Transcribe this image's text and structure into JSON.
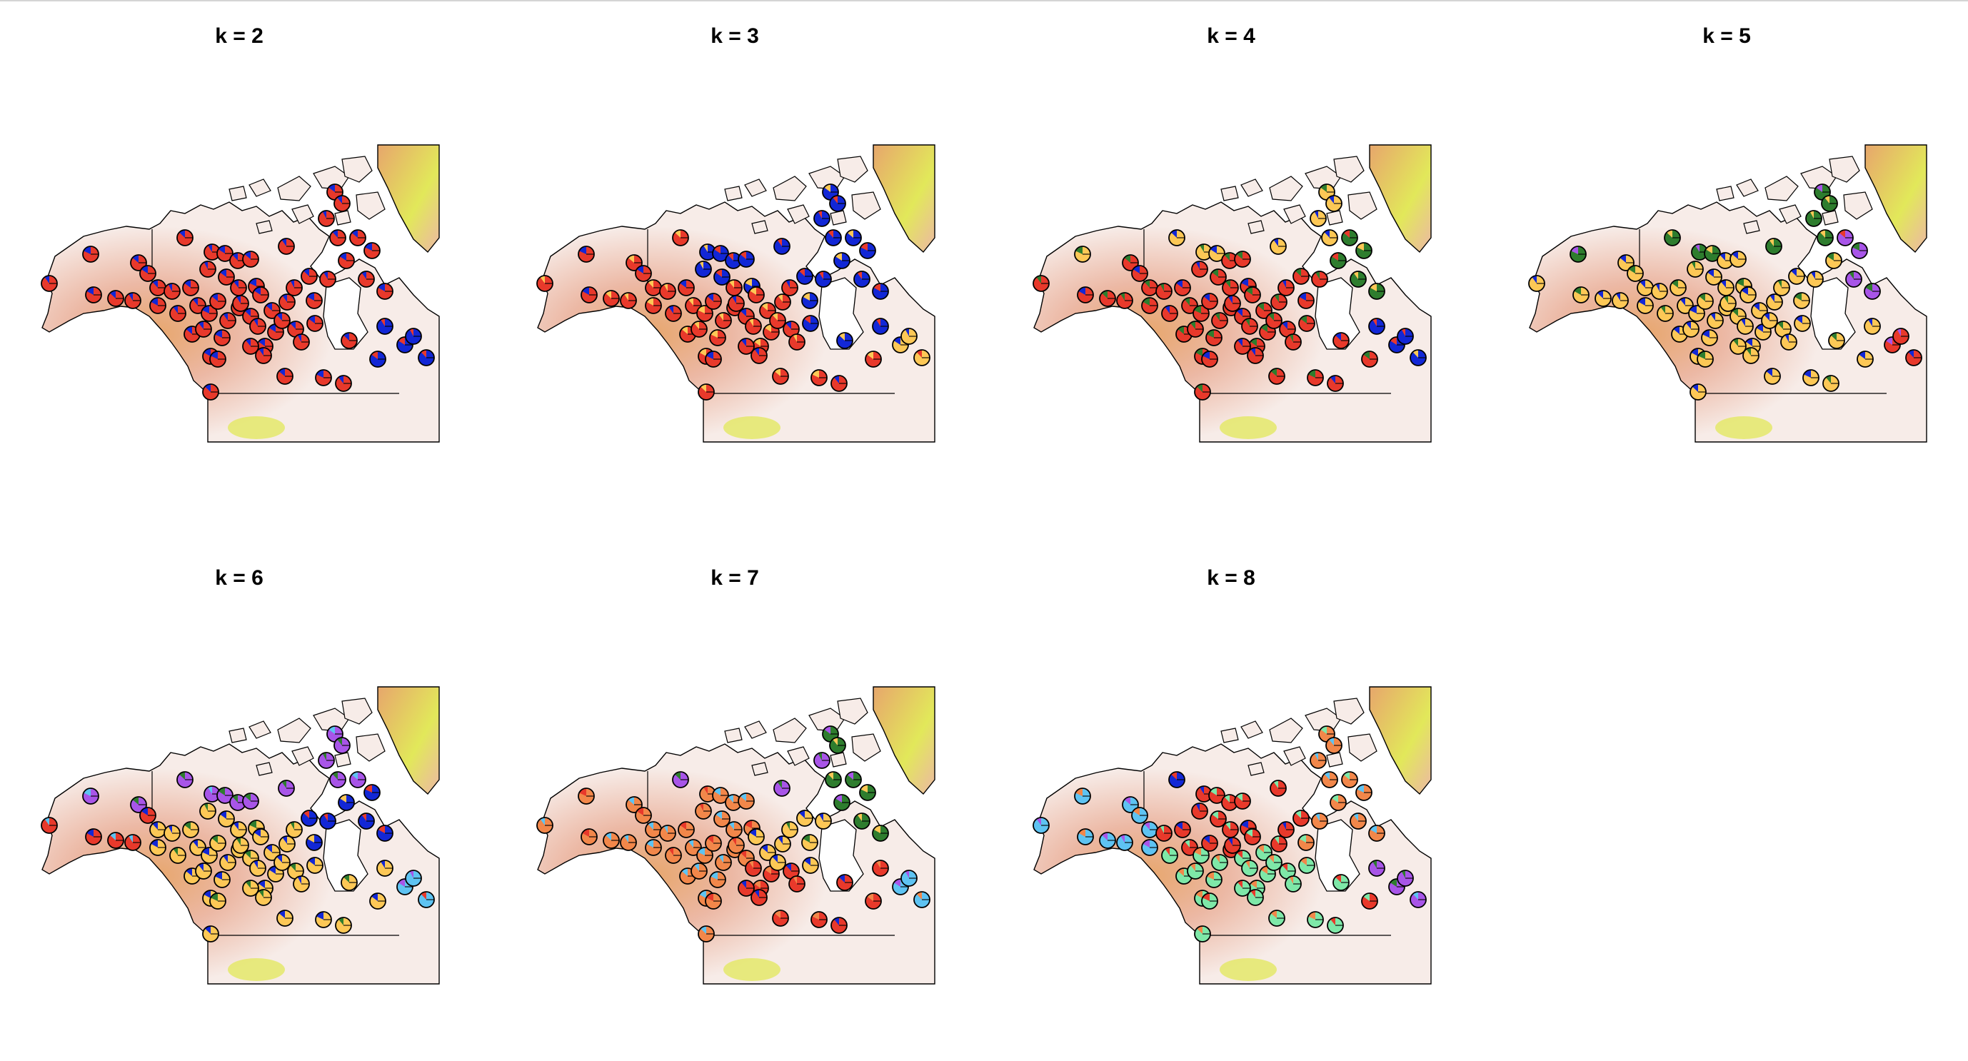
{
  "figure": {
    "panels": [
      {
        "id": "k2",
        "title": "k = 2",
        "k": 2
      },
      {
        "id": "k3",
        "title": "k = 3",
        "k": 3
      },
      {
        "id": "k4",
        "title": "k = 4",
        "k": 4
      },
      {
        "id": "k5",
        "title": "k = 5",
        "k": 5
      },
      {
        "id": "k6",
        "title": "k = 6",
        "k": 6
      },
      {
        "id": "k7",
        "title": "k = 7",
        "k": 7
      },
      {
        "id": "k8",
        "title": "k = 8",
        "k": 8
      }
    ],
    "cluster_colors": [
      "#e8392b",
      "#1227d6",
      "#fdc856",
      "#2e7d2e",
      "#a855e8",
      "#5ec3f2",
      "#f2874a",
      "#7ee8a8"
    ],
    "map_colors": {
      "land_low": "#f7ece8",
      "land_mid": "#ecb8a4",
      "land_high": "#e7a66c",
      "peak": "#e2e85a",
      "coast": "#000000"
    }
  }
}
